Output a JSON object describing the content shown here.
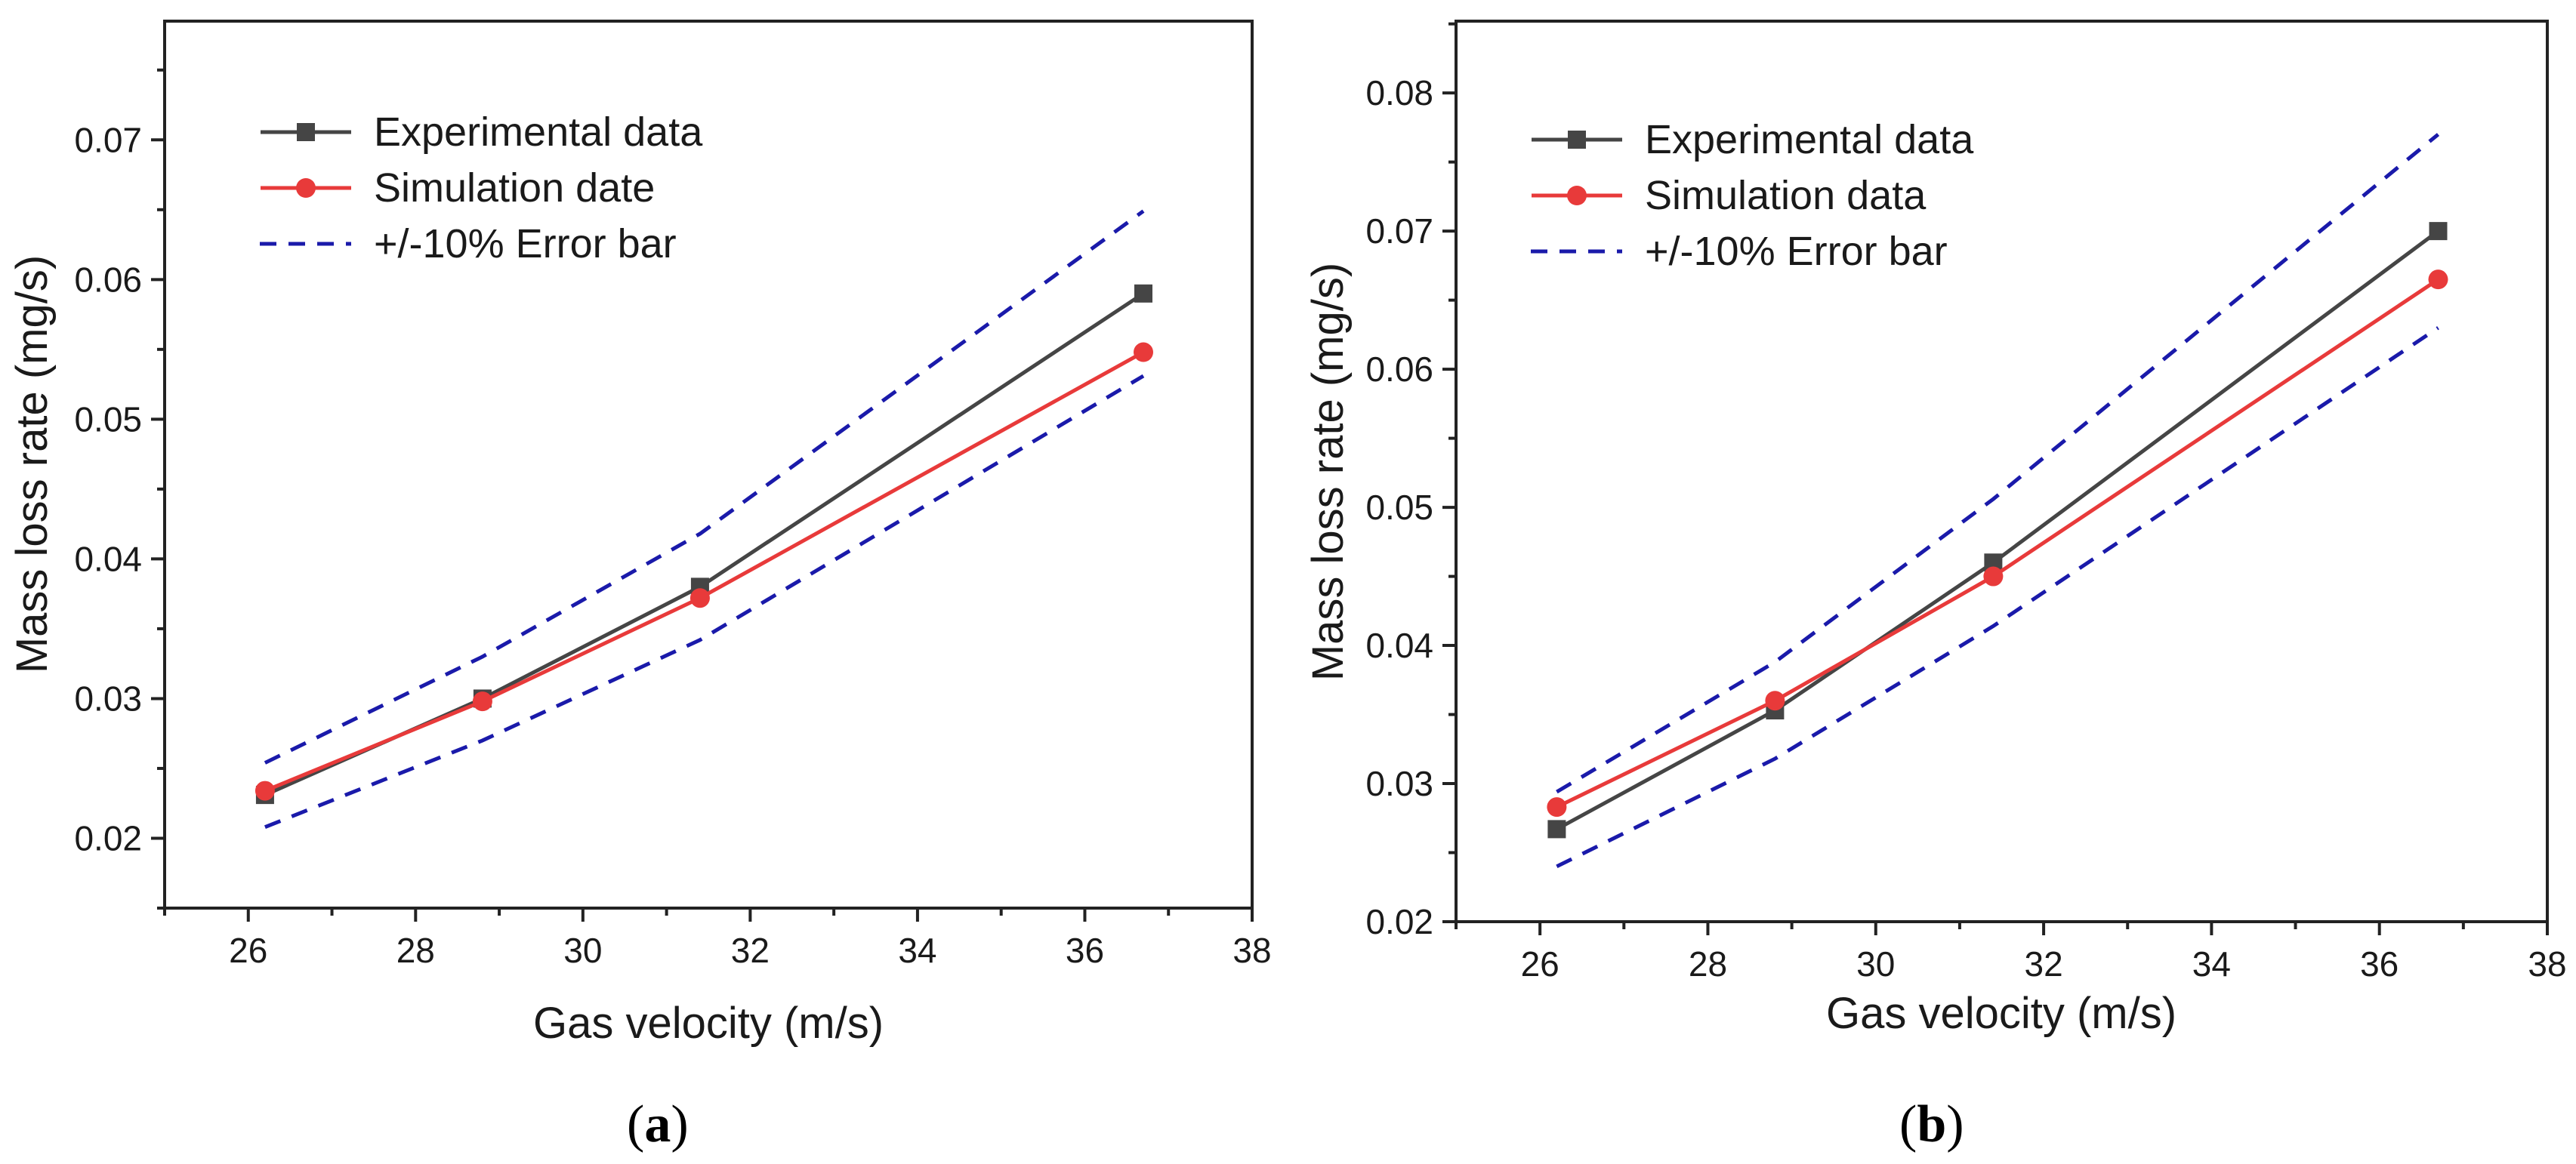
{
  "chart_data": [
    {
      "type": "line",
      "panel_label": "a",
      "xlabel": "Gas velocity (m/s)",
      "ylabel": "Mass loss rate (mg/s)",
      "xlim": [
        25,
        38
      ],
      "ylim": [
        0.015,
        0.0785
      ],
      "xticks": [
        26,
        28,
        30,
        32,
        34,
        36,
        38
      ],
      "yticks": [
        0.02,
        0.03,
        0.04,
        0.05,
        0.06,
        0.07
      ],
      "xtick_labels": [
        "26",
        "28",
        "30",
        "32",
        "34",
        "36",
        "38"
      ],
      "ytick_labels": [
        "0.02",
        "0.03",
        "0.04",
        "0.05",
        "0.06",
        "0.07"
      ],
      "legend_position": "top-left",
      "x": [
        26.2,
        28.8,
        31.4,
        36.7
      ],
      "series": [
        {
          "name": "Experimental data",
          "style": "solid-square",
          "color": "#454545",
          "values": [
            0.0231,
            0.03,
            0.038,
            0.059
          ]
        },
        {
          "name": "Simulation date",
          "style": "solid-circle",
          "color": "#e83a3a",
          "values": [
            0.0234,
            0.0298,
            0.0372,
            0.0548
          ]
        },
        {
          "name": "+/-10% Error bar",
          "style": "dashed",
          "color": "#1a1aaa",
          "bands": [
            [
              0.0254,
              0.033,
              0.0418,
              0.0649
            ],
            [
              0.0208,
              0.027,
              0.0342,
              0.0531
            ]
          ]
        }
      ]
    },
    {
      "type": "line",
      "panel_label": "b",
      "xlabel": "Gas velocity (m/s)",
      "ylabel": "Mass loss rate (mg/s)",
      "xlim": [
        25,
        38
      ],
      "ylim": [
        0.02,
        0.0852
      ],
      "xticks": [
        26,
        28,
        30,
        32,
        34,
        36,
        38
      ],
      "yticks": [
        0.02,
        0.03,
        0.04,
        0.05,
        0.06,
        0.07,
        0.08
      ],
      "xtick_labels": [
        "26",
        "28",
        "30",
        "32",
        "34",
        "36",
        "38"
      ],
      "ytick_labels": [
        "0.02",
        "0.03",
        "0.04",
        "0.05",
        "0.06",
        "0.07",
        "0.08"
      ],
      "legend_position": "top-left",
      "x": [
        26.2,
        28.8,
        31.4,
        36.7
      ],
      "series": [
        {
          "name": "Experimental data",
          "style": "solid-square",
          "color": "#454545",
          "values": [
            0.0267,
            0.0353,
            0.046,
            0.07
          ]
        },
        {
          "name": "Simulation data",
          "style": "solid-circle",
          "color": "#e83a3a",
          "values": [
            0.0283,
            0.036,
            0.045,
            0.0665
          ]
        },
        {
          "name": "+/-10%  Error bar",
          "style": "dashed",
          "color": "#1a1aaa",
          "bands": [
            [
              0.0294,
              0.0388,
              0.0506,
              0.077
            ],
            [
              0.024,
              0.0318,
              0.0414,
              0.063
            ]
          ]
        }
      ]
    }
  ]
}
